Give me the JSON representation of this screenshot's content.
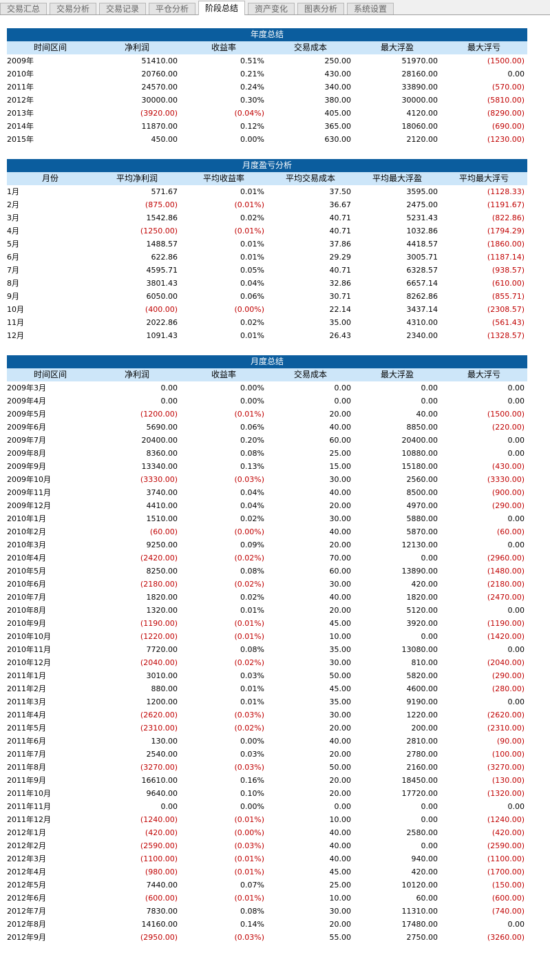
{
  "tabs": [
    "交易汇总",
    "交易分析",
    "交易记录",
    "平仓分析",
    "阶段总结",
    "资产变化",
    "图表分析",
    "系统设置"
  ],
  "tables": [
    {
      "title": "年度总结",
      "headers": [
        "时间区间",
        "净利润",
        "收益率",
        "交易成本",
        "最大浮盈",
        "最大浮亏"
      ],
      "rows": [
        [
          "2009年",
          "51410.00",
          "0.51%",
          "250.00",
          "51970.00",
          "(1500.00)"
        ],
        [
          "2010年",
          "20760.00",
          "0.21%",
          "430.00",
          "28160.00",
          "0.00"
        ],
        [
          "2011年",
          "24570.00",
          "0.24%",
          "340.00",
          "33890.00",
          "(570.00)"
        ],
        [
          "2012年",
          "30000.00",
          "0.30%",
          "380.00",
          "30000.00",
          "(5810.00)"
        ],
        [
          "2013年",
          "(3920.00)",
          "(0.04%)",
          "405.00",
          "4120.00",
          "(8290.00)"
        ],
        [
          "2014年",
          "11870.00",
          "0.12%",
          "365.00",
          "18060.00",
          "(690.00)"
        ],
        [
          "2015年",
          "450.00",
          "0.00%",
          "630.00",
          "2120.00",
          "(1230.00)"
        ]
      ]
    },
    {
      "title": "月度盈亏分析",
      "headers": [
        "月份",
        "平均净利润",
        "平均收益率",
        "平均交易成本",
        "平均最大浮盈",
        "平均最大浮亏"
      ],
      "rows": [
        [
          "1月",
          "571.67",
          "0.01%",
          "37.50",
          "3595.00",
          "(1128.33)"
        ],
        [
          "2月",
          "(875.00)",
          "(0.01%)",
          "36.67",
          "2475.00",
          "(1191.67)"
        ],
        [
          "3月",
          "1542.86",
          "0.02%",
          "40.71",
          "5231.43",
          "(822.86)"
        ],
        [
          "4月",
          "(1250.00)",
          "(0.01%)",
          "40.71",
          "1032.86",
          "(1794.29)"
        ],
        [
          "5月",
          "1488.57",
          "0.01%",
          "37.86",
          "4418.57",
          "(1860.00)"
        ],
        [
          "6月",
          "622.86",
          "0.01%",
          "29.29",
          "3005.71",
          "(1187.14)"
        ],
        [
          "7月",
          "4595.71",
          "0.05%",
          "40.71",
          "6328.57",
          "(938.57)"
        ],
        [
          "8月",
          "3801.43",
          "0.04%",
          "32.86",
          "6657.14",
          "(610.00)"
        ],
        [
          "9月",
          "6050.00",
          "0.06%",
          "30.71",
          "8262.86",
          "(855.71)"
        ],
        [
          "10月",
          "(400.00)",
          "(0.00%)",
          "22.14",
          "3437.14",
          "(2308.57)"
        ],
        [
          "11月",
          "2022.86",
          "0.02%",
          "35.00",
          "4310.00",
          "(561.43)"
        ],
        [
          "12月",
          "1091.43",
          "0.01%",
          "26.43",
          "2340.00",
          "(1328.57)"
        ]
      ]
    },
    {
      "title": "月度总结",
      "headers": [
        "时间区间",
        "净利润",
        "收益率",
        "交易成本",
        "最大浮盈",
        "最大浮亏"
      ],
      "rows": [
        [
          "2009年3月",
          "0.00",
          "0.00%",
          "0.00",
          "0.00",
          "0.00"
        ],
        [
          "2009年4月",
          "0.00",
          "0.00%",
          "0.00",
          "0.00",
          "0.00"
        ],
        [
          "2009年5月",
          "(1200.00)",
          "(0.01%)",
          "20.00",
          "40.00",
          "(1500.00)"
        ],
        [
          "2009年6月",
          "5690.00",
          "0.06%",
          "40.00",
          "8850.00",
          "(220.00)"
        ],
        [
          "2009年7月",
          "20400.00",
          "0.20%",
          "60.00",
          "20400.00",
          "0.00"
        ],
        [
          "2009年8月",
          "8360.00",
          "0.08%",
          "25.00",
          "10880.00",
          "0.00"
        ],
        [
          "2009年9月",
          "13340.00",
          "0.13%",
          "15.00",
          "15180.00",
          "(430.00)"
        ],
        [
          "2009年10月",
          "(3330.00)",
          "(0.03%)",
          "30.00",
          "2560.00",
          "(3330.00)"
        ],
        [
          "2009年11月",
          "3740.00",
          "0.04%",
          "40.00",
          "8500.00",
          "(900.00)"
        ],
        [
          "2009年12月",
          "4410.00",
          "0.04%",
          "20.00",
          "4970.00",
          "(290.00)"
        ],
        [
          "2010年1月",
          "1510.00",
          "0.02%",
          "30.00",
          "5880.00",
          "0.00"
        ],
        [
          "2010年2月",
          "(60.00)",
          "(0.00%)",
          "40.00",
          "5870.00",
          "(60.00)"
        ],
        [
          "2010年3月",
          "9250.00",
          "0.09%",
          "20.00",
          "12130.00",
          "0.00"
        ],
        [
          "2010年4月",
          "(2420.00)",
          "(0.02%)",
          "70.00",
          "0.00",
          "(2960.00)"
        ],
        [
          "2010年5月",
          "8250.00",
          "0.08%",
          "60.00",
          "13890.00",
          "(1480.00)"
        ],
        [
          "2010年6月",
          "(2180.00)",
          "(0.02%)",
          "30.00",
          "420.00",
          "(2180.00)"
        ],
        [
          "2010年7月",
          "1820.00",
          "0.02%",
          "40.00",
          "1820.00",
          "(2470.00)"
        ],
        [
          "2010年8月",
          "1320.00",
          "0.01%",
          "20.00",
          "5120.00",
          "0.00"
        ],
        [
          "2010年9月",
          "(1190.00)",
          "(0.01%)",
          "45.00",
          "3920.00",
          "(1190.00)"
        ],
        [
          "2010年10月",
          "(1220.00)",
          "(0.01%)",
          "10.00",
          "0.00",
          "(1420.00)"
        ],
        [
          "2010年11月",
          "7720.00",
          "0.08%",
          "35.00",
          "13080.00",
          "0.00"
        ],
        [
          "2010年12月",
          "(2040.00)",
          "(0.02%)",
          "30.00",
          "810.00",
          "(2040.00)"
        ],
        [
          "2011年1月",
          "3010.00",
          "0.03%",
          "50.00",
          "5820.00",
          "(290.00)"
        ],
        [
          "2011年2月",
          "880.00",
          "0.01%",
          "45.00",
          "4600.00",
          "(280.00)"
        ],
        [
          "2011年3月",
          "1200.00",
          "0.01%",
          "35.00",
          "9190.00",
          "0.00"
        ],
        [
          "2011年4月",
          "(2620.00)",
          "(0.03%)",
          "30.00",
          "1220.00",
          "(2620.00)"
        ],
        [
          "2011年5月",
          "(2310.00)",
          "(0.02%)",
          "20.00",
          "200.00",
          "(2310.00)"
        ],
        [
          "2011年6月",
          "130.00",
          "0.00%",
          "40.00",
          "2810.00",
          "(90.00)"
        ],
        [
          "2011年7月",
          "2540.00",
          "0.03%",
          "20.00",
          "2780.00",
          "(100.00)"
        ],
        [
          "2011年8月",
          "(3270.00)",
          "(0.03%)",
          "50.00",
          "2160.00",
          "(3270.00)"
        ],
        [
          "2011年9月",
          "16610.00",
          "0.16%",
          "20.00",
          "18450.00",
          "(130.00)"
        ],
        [
          "2011年10月",
          "9640.00",
          "0.10%",
          "20.00",
          "17720.00",
          "(1320.00)"
        ],
        [
          "2011年11月",
          "0.00",
          "0.00%",
          "0.00",
          "0.00",
          "0.00"
        ],
        [
          "2011年12月",
          "(1240.00)",
          "(0.01%)",
          "10.00",
          "0.00",
          "(1240.00)"
        ],
        [
          "2012年1月",
          "(420.00)",
          "(0.00%)",
          "40.00",
          "2580.00",
          "(420.00)"
        ],
        [
          "2012年2月",
          "(2590.00)",
          "(0.03%)",
          "40.00",
          "0.00",
          "(2590.00)"
        ],
        [
          "2012年3月",
          "(1100.00)",
          "(0.01%)",
          "40.00",
          "940.00",
          "(1100.00)"
        ],
        [
          "2012年4月",
          "(980.00)",
          "(0.01%)",
          "45.00",
          "420.00",
          "(1700.00)"
        ],
        [
          "2012年5月",
          "7440.00",
          "0.07%",
          "25.00",
          "10120.00",
          "(150.00)"
        ],
        [
          "2012年6月",
          "(600.00)",
          "(0.01%)",
          "10.00",
          "60.00",
          "(600.00)"
        ],
        [
          "2012年7月",
          "7830.00",
          "0.08%",
          "30.00",
          "11310.00",
          "(740.00)"
        ],
        [
          "2012年8月",
          "14160.00",
          "0.14%",
          "20.00",
          "17480.00",
          "0.00"
        ],
        [
          "2012年9月",
          "(2950.00)",
          "(0.03%)",
          "55.00",
          "2750.00",
          "(3260.00)"
        ]
      ]
    }
  ]
}
